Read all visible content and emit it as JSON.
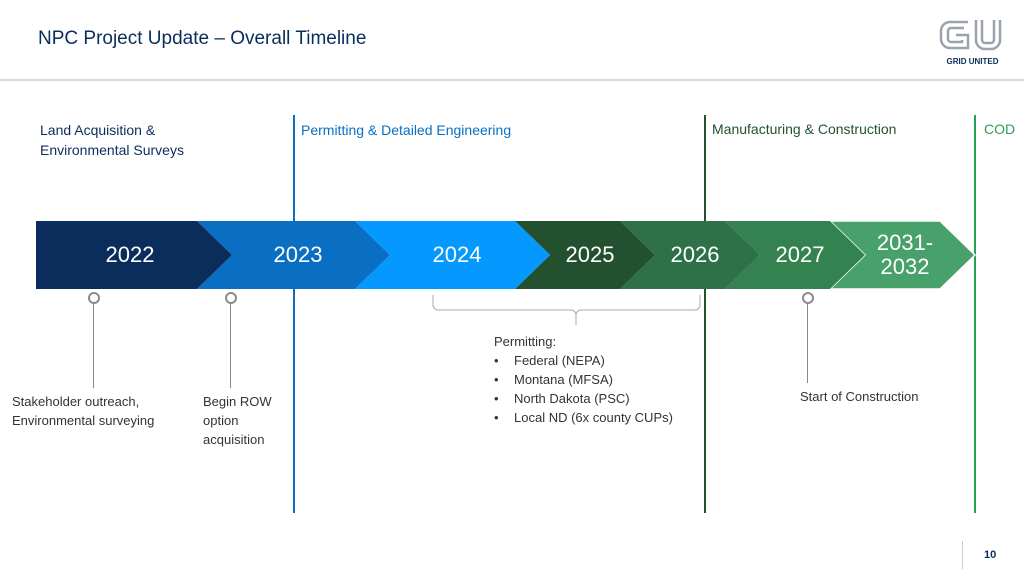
{
  "header": {
    "title": "NPC Project Update – Overall Timeline",
    "logo_text": "GRID UNITED"
  },
  "phases": [
    {
      "label": "Land Acquisition & Environmental Surveys",
      "color": "#0b2d5c"
    },
    {
      "label": "Permitting & Detailed Engineering",
      "color": "#0a6fc2"
    },
    {
      "label": "Manufacturing & Construction",
      "color": "#235130"
    },
    {
      "label": "COD",
      "color": "#27a04f"
    }
  ],
  "years": [
    {
      "label": "2022",
      "color": "#0b2d5c"
    },
    {
      "label": "2023",
      "color": "#0a6fc2"
    },
    {
      "label": "2024",
      "color": "#0598ff"
    },
    {
      "label": "2025",
      "color": "#235130"
    },
    {
      "label": "2026",
      "color": "#2e7048"
    },
    {
      "label": "2027",
      "color": "#34824f"
    },
    {
      "label": "2031-2032",
      "color": "#48a06a"
    }
  ],
  "milestones": {
    "m1": "Stakeholder outreach, Environmental surveying",
    "m2": "Begin ROW option acquisition",
    "m3": "Start of Construction"
  },
  "permitting": {
    "heading": "Permitting:",
    "items": [
      "Federal (NEPA)",
      "Montana (MFSA)",
      "North Dakota (PSC)",
      "Local ND (6x county CUPs)"
    ]
  },
  "footer": {
    "page_number": "10"
  }
}
